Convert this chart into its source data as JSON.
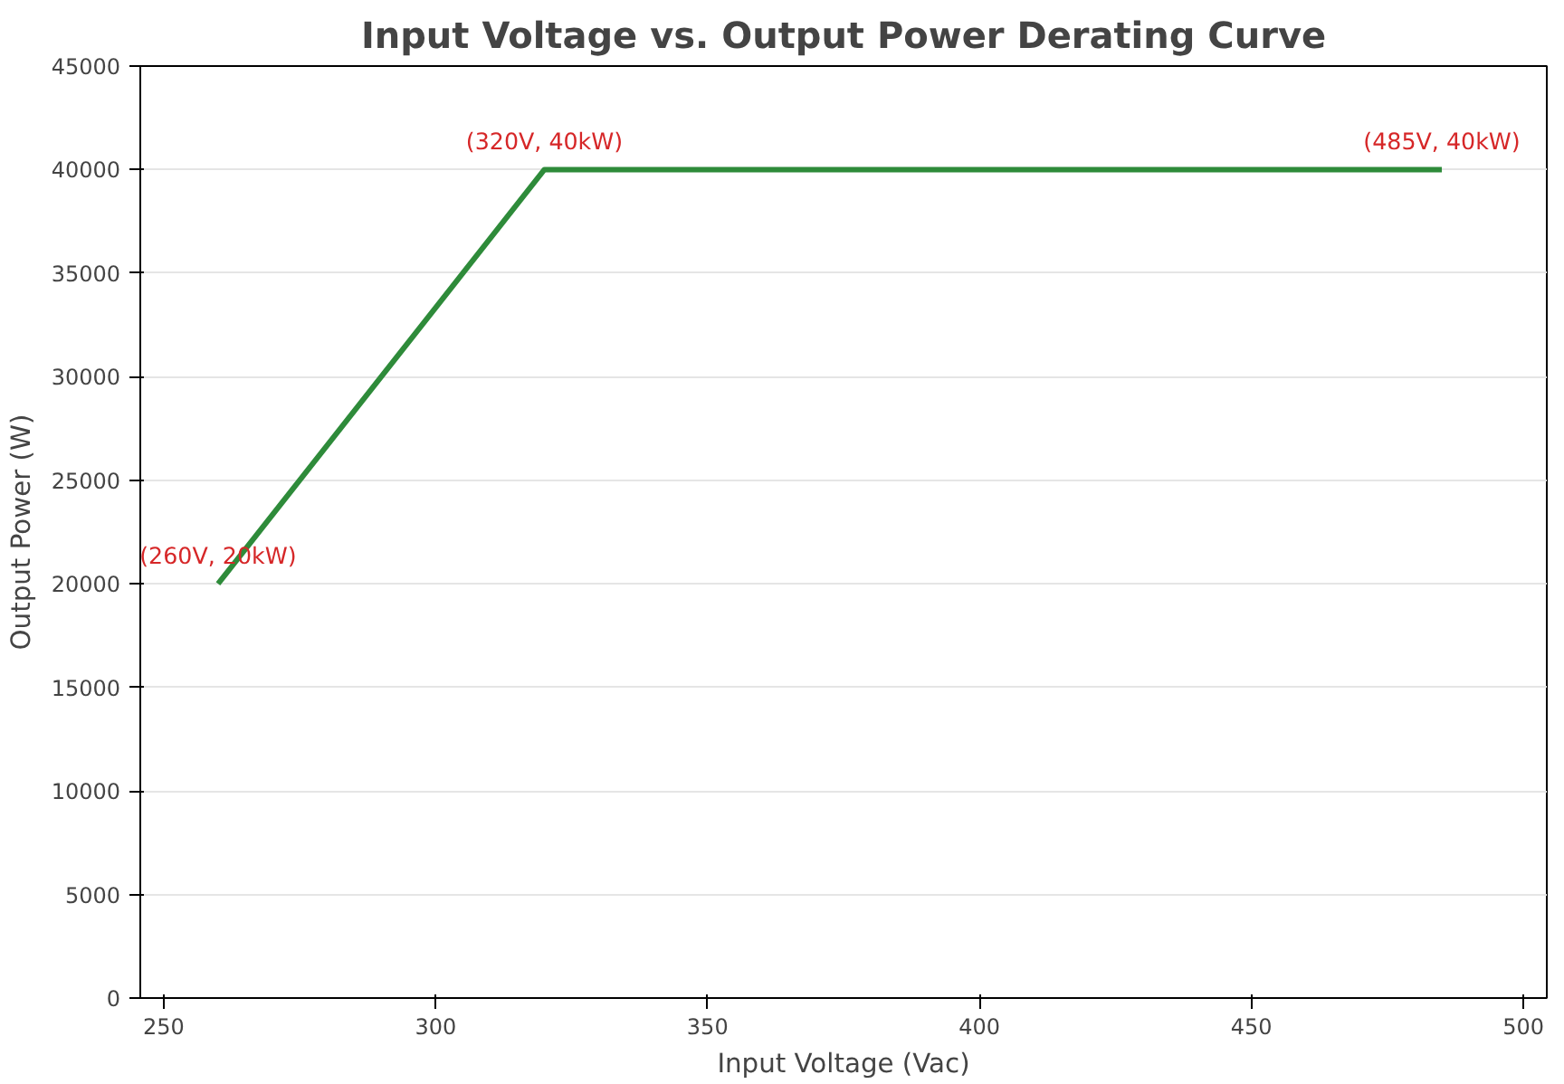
{
  "chart_data": {
    "type": "line",
    "title": "Input Voltage vs. Output Power Derating Curve",
    "xlabel": "Input Voltage (Vac)",
    "ylabel": "Output Power (W)",
    "x": [
      260,
      320,
      485
    ],
    "series": [
      {
        "color": "#2e8b3a",
        "values": [
          20000,
          40000,
          40000
        ]
      }
    ],
    "annotations": [
      {
        "text": "(260V, 20kW)",
        "x": 260,
        "y": 20000
      },
      {
        "text": "(320V, 40kW)",
        "x": 320,
        "y": 40000
      },
      {
        "text": "(485V, 40kW)",
        "x": 485,
        "y": 40000
      }
    ],
    "xlim": [
      245.7,
      504.3
    ],
    "ylim": [
      0,
      45000
    ],
    "xticks": [
      250,
      300,
      350,
      400,
      450,
      500
    ],
    "yticks": [
      0,
      5000,
      10000,
      15000,
      20000,
      25000,
      30000,
      35000,
      40000,
      45000
    ],
    "grid": "y",
    "marker": "none",
    "line_style": "solid"
  }
}
